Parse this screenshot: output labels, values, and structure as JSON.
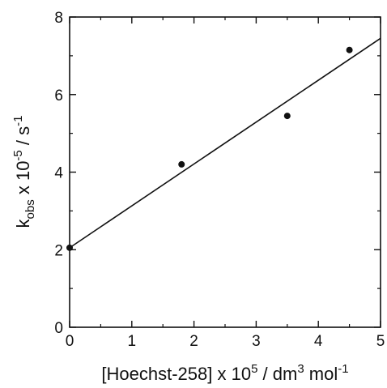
{
  "chart_data": {
    "type": "scatter",
    "xlabel": "[Hoechst-258] x 10^5 / dm^3 mol^-1",
    "ylabel": "k_obs x 10^-5 / s^-1",
    "xlim": [
      0,
      5
    ],
    "ylim": [
      0,
      8
    ],
    "x_ticks": [
      "0",
      "1",
      "2",
      "3",
      "4",
      "5"
    ],
    "y_ticks": [
      "0",
      "2",
      "4",
      "6",
      "8"
    ],
    "grid": false,
    "series": [
      {
        "points": [
          {
            "x": 0.0,
            "y": 2.05
          },
          {
            "x": 1.8,
            "y": 4.2
          },
          {
            "x": 3.5,
            "y": 5.45
          },
          {
            "x": 4.5,
            "y": 7.15
          }
        ]
      }
    ],
    "fit_line": {
      "x0": 0.0,
      "y0": 2.05,
      "x1": 5.0,
      "y1": 7.45
    },
    "colors": {
      "ink": "#111111",
      "background": "#ffffff"
    }
  },
  "labels": {
    "x_prefix": "[Hoechst-258] x 10",
    "x_exp1": "5",
    "x_mid": " / dm",
    "x_exp2": "3",
    "x_mid2": " mol",
    "x_exp3": "-1",
    "y_k": "k",
    "y_sub": "obs",
    "y_mid": " x 10",
    "y_exp1": "-5",
    "y_mid2": " / s",
    "y_exp2": "-1"
  }
}
